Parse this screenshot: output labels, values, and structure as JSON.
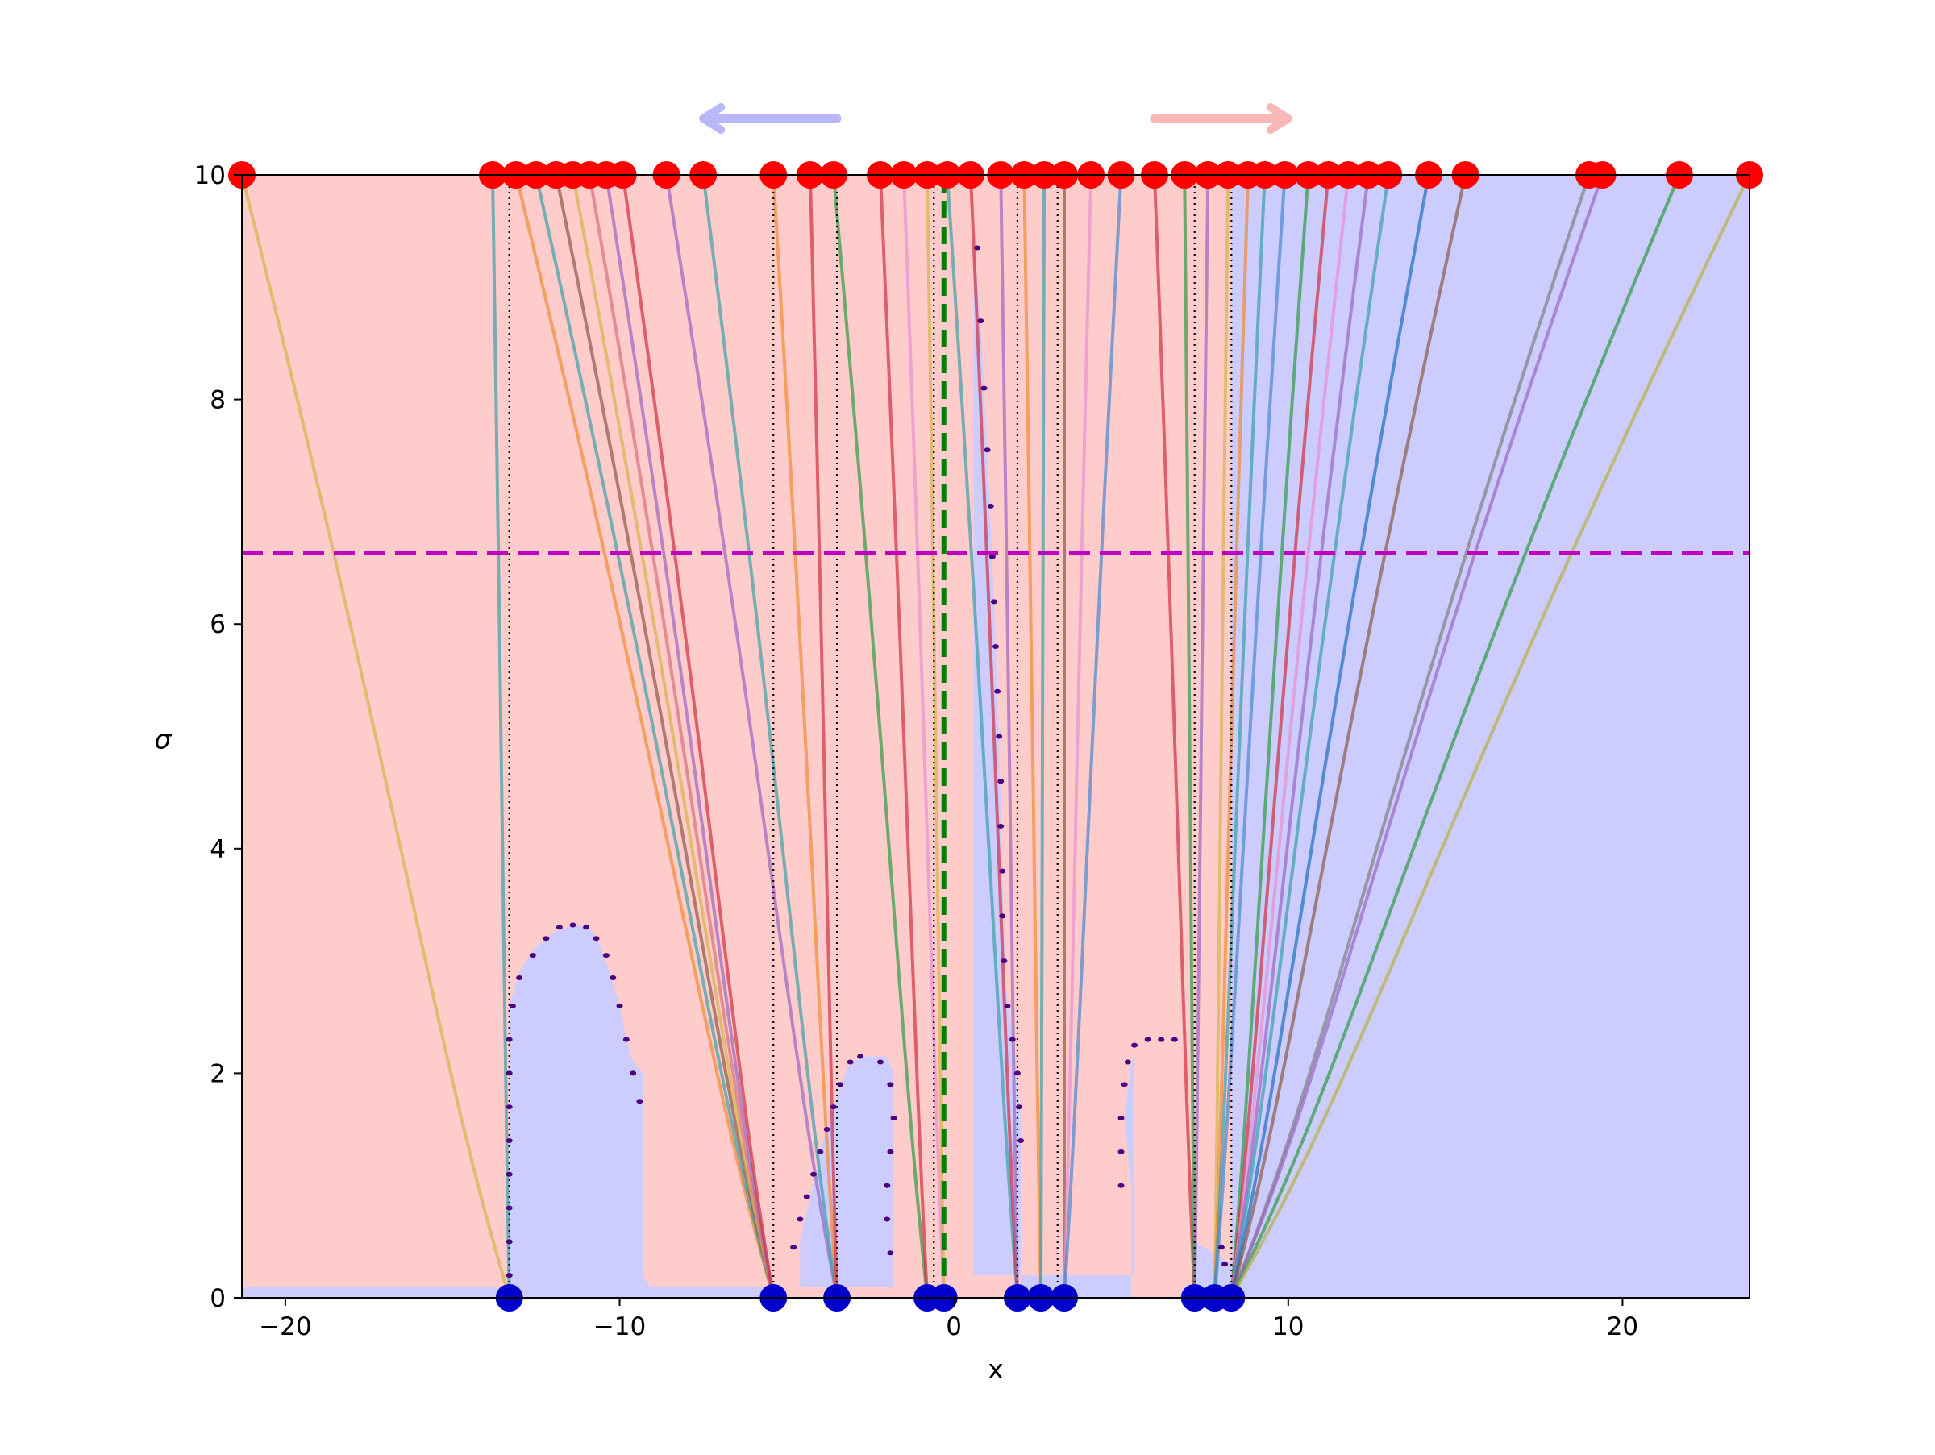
{
  "chart_data": {
    "type": "line",
    "title": "",
    "xlabel": "x",
    "ylabel": "σ",
    "xlim": [
      -21.3,
      23.8
    ],
    "ylim": [
      0,
      10
    ],
    "xticks": [
      -20,
      -10,
      0,
      10,
      20
    ],
    "xtick_labels": [
      "−20",
      "−10",
      "0",
      "10",
      "20"
    ],
    "yticks": [
      0,
      2,
      4,
      6,
      8,
      10
    ],
    "ytick_labels": [
      "0",
      "2",
      "4",
      "6",
      "8",
      "10"
    ],
    "grid": false,
    "legend": "none",
    "colors": {
      "red_region": "#ffcccc",
      "blue_region": "#ccccff",
      "top_markers": "#ff0000",
      "bottom_markers": "#0000cc",
      "horizontal_dashed": "#c000c0",
      "vertical_dashed": "#008000",
      "boundary_dots": "#4b0082",
      "dotted_lines": "#000000",
      "arrow_left": "#b8b8f8",
      "arrow_right": "#f8b8b8"
    },
    "horizontal_dashed_y": 6.63,
    "vertical_dashed_x": -0.3,
    "dotted_vertical_x": [
      -13.3,
      -5.4,
      -3.5,
      -0.6,
      1.9,
      3.1,
      7.2,
      8.3
    ],
    "arrows": [
      {
        "name": "arrow-left",
        "direction": "left",
        "x_from": -3.5,
        "x_to": -7.5
      },
      {
        "name": "arrow-right",
        "direction": "right",
        "x_from": 6.0,
        "x_to": 10.0
      }
    ],
    "bottom_points_x": [
      -13.3,
      -5.4,
      -3.5,
      -0.8,
      -0.3,
      1.9,
      2.6,
      3.3,
      7.2,
      7.8,
      8.3
    ],
    "top_points_x": [
      -21.3,
      -13.8,
      -13.1,
      -12.5,
      -11.9,
      -11.4,
      -10.9,
      -10.4,
      -9.9,
      -8.6,
      -7.5,
      -5.4,
      -4.3,
      -3.6,
      -2.2,
      -1.5,
      -0.8,
      -0.2,
      0.5,
      1.4,
      2.1,
      2.7,
      3.3,
      4.1,
      5.0,
      6.0,
      6.9,
      7.6,
      8.2,
      8.8,
      9.3,
      9.9,
      10.6,
      11.2,
      11.8,
      12.4,
      13.0,
      14.2,
      15.3,
      19.0,
      19.4,
      21.7,
      23.8
    ],
    "series": [
      {
        "x0": -13.3,
        "x1": -21.3,
        "color": "#d4b44a"
      },
      {
        "x0": -13.3,
        "x1": -13.8,
        "color": "#3aa0a8"
      },
      {
        "x0": -5.4,
        "x1": -13.1,
        "color": "#f08a30"
      },
      {
        "x0": -5.4,
        "x1": -12.5,
        "color": "#3aa0a8"
      },
      {
        "x0": -5.4,
        "x1": -11.9,
        "color": "#8c5a46"
      },
      {
        "x0": -5.4,
        "x1": -11.4,
        "color": "#d4b44a"
      },
      {
        "x0": -5.4,
        "x1": -10.9,
        "color": "#d9707a"
      },
      {
        "x0": -5.4,
        "x1": -10.4,
        "color": "#9a66c0"
      },
      {
        "x0": -5.4,
        "x1": -9.9,
        "color": "#d03040"
      },
      {
        "x0": -3.5,
        "x1": -8.6,
        "color": "#9a66c0"
      },
      {
        "x0": -3.5,
        "x1": -7.5,
        "color": "#3aa0a8"
      },
      {
        "x0": -3.5,
        "x1": -5.4,
        "color": "#f08a30"
      },
      {
        "x0": -3.5,
        "x1": -4.3,
        "color": "#d03040"
      },
      {
        "x0": -0.8,
        "x1": -3.6,
        "color": "#2e9a40"
      },
      {
        "x0": -0.8,
        "x1": -2.2,
        "color": "#d03040"
      },
      {
        "x0": -0.3,
        "x1": -1.5,
        "color": "#e890d0"
      },
      {
        "x0": -0.3,
        "x1": -0.8,
        "color": "#d4b44a"
      },
      {
        "x0": 1.9,
        "x1": -0.2,
        "color": "#3aa0a8"
      },
      {
        "x0": 1.9,
        "x1": 0.5,
        "color": "#d03040"
      },
      {
        "x0": 1.9,
        "x1": 1.4,
        "color": "#9a66c0"
      },
      {
        "x0": 2.6,
        "x1": 2.1,
        "color": "#f08a30"
      },
      {
        "x0": 2.6,
        "x1": 2.7,
        "color": "#3aa0a8"
      },
      {
        "x0": 3.3,
        "x1": 3.3,
        "color": "#8c5a46"
      },
      {
        "x0": 3.3,
        "x1": 4.1,
        "color": "#e890d0"
      },
      {
        "x0": 3.3,
        "x1": 5.0,
        "color": "#4a88d0"
      },
      {
        "x0": 7.2,
        "x1": 6.0,
        "color": "#d03040"
      },
      {
        "x0": 7.2,
        "x1": 6.9,
        "color": "#2e9a40"
      },
      {
        "x0": 7.2,
        "x1": 7.6,
        "color": "#9a66c0"
      },
      {
        "x0": 7.8,
        "x1": 8.2,
        "color": "#d4b44a"
      },
      {
        "x0": 7.8,
        "x1": 8.8,
        "color": "#f08a30"
      },
      {
        "x0": 7.8,
        "x1": 9.3,
        "color": "#3aa0a8"
      },
      {
        "x0": 7.8,
        "x1": 9.9,
        "color": "#4a88d0"
      },
      {
        "x0": 8.3,
        "x1": 10.6,
        "color": "#2e9a40"
      },
      {
        "x0": 8.3,
        "x1": 11.2,
        "color": "#d03040"
      },
      {
        "x0": 8.3,
        "x1": 11.8,
        "color": "#e890d0"
      },
      {
        "x0": 8.3,
        "x1": 12.4,
        "color": "#9a66c0"
      },
      {
        "x0": 8.3,
        "x1": 13.0,
        "color": "#3aa0a8"
      },
      {
        "x0": 8.3,
        "x1": 14.2,
        "color": "#1f6fc0"
      },
      {
        "x0": 8.3,
        "x1": 15.3,
        "color": "#8c5a46"
      },
      {
        "x0": 8.3,
        "x1": 19.0,
        "color": "#7f7f7f"
      },
      {
        "x0": 8.3,
        "x1": 19.4,
        "color": "#9a66c0"
      },
      {
        "x0": 8.3,
        "x1": 21.7,
        "color": "#2e9a40"
      },
      {
        "x0": 8.3,
        "x1": 23.8,
        "color": "#b8b040"
      }
    ],
    "boundary_dots": [
      [
        -13.3,
        0.2
      ],
      [
        -13.3,
        0.5
      ],
      [
        -13.3,
        0.8
      ],
      [
        -13.3,
        1.1
      ],
      [
        -13.3,
        1.4
      ],
      [
        -13.3,
        1.7
      ],
      [
        -13.3,
        2.0
      ],
      [
        -13.3,
        2.3
      ],
      [
        -13.2,
        2.6
      ],
      [
        -13.0,
        2.85
      ],
      [
        -12.6,
        3.05
      ],
      [
        -12.2,
        3.2
      ],
      [
        -11.8,
        3.3
      ],
      [
        -11.4,
        3.32
      ],
      [
        -11.0,
        3.3
      ],
      [
        -10.7,
        3.2
      ],
      [
        -10.4,
        3.05
      ],
      [
        -10.2,
        2.85
      ],
      [
        -10.0,
        2.6
      ],
      [
        -9.8,
        2.3
      ],
      [
        -9.6,
        2.0
      ],
      [
        -9.4,
        1.75
      ],
      [
        -4.8,
        0.45
      ],
      [
        -4.6,
        0.7
      ],
      [
        -4.4,
        0.9
      ],
      [
        -4.2,
        1.1
      ],
      [
        -4.0,
        1.3
      ],
      [
        -3.8,
        1.5
      ],
      [
        -3.6,
        1.7
      ],
      [
        -3.4,
        1.9
      ],
      [
        -3.1,
        2.1
      ],
      [
        -2.8,
        2.15
      ],
      [
        -2.2,
        2.1
      ],
      [
        -1.9,
        1.9
      ],
      [
        -1.8,
        1.6
      ],
      [
        -1.9,
        1.3
      ],
      [
        -2.0,
        1.0
      ],
      [
        -2.0,
        0.7
      ],
      [
        -1.9,
        0.4
      ],
      [
        0.7,
        9.35
      ],
      [
        0.8,
        8.7
      ],
      [
        0.9,
        8.1
      ],
      [
        1.0,
        7.55
      ],
      [
        1.1,
        7.05
      ],
      [
        1.15,
        6.6
      ],
      [
        1.2,
        6.2
      ],
      [
        1.25,
        5.8
      ],
      [
        1.3,
        5.4
      ],
      [
        1.35,
        5.0
      ],
      [
        1.4,
        4.6
      ],
      [
        1.4,
        4.2
      ],
      [
        1.45,
        3.8
      ],
      [
        1.45,
        3.4
      ],
      [
        1.5,
        3.0
      ],
      [
        1.6,
        2.6
      ],
      [
        1.75,
        2.3
      ],
      [
        1.9,
        2.0
      ],
      [
        1.95,
        1.7
      ],
      [
        2.0,
        1.4
      ],
      [
        5.2,
        2.1
      ],
      [
        5.4,
        2.25
      ],
      [
        5.8,
        2.3
      ],
      [
        6.2,
        2.3
      ],
      [
        6.6,
        2.3
      ],
      [
        5.1,
        1.9
      ],
      [
        5.0,
        1.6
      ],
      [
        5.0,
        1.3
      ],
      [
        5.0,
        1.0
      ],
      [
        8.0,
        0.45
      ],
      [
        8.1,
        0.3
      ]
    ],
    "blue_regions": [
      {
        "x_from": -21.3,
        "x_to": -13.3,
        "y_to": 0.1
      },
      {
        "x_from": -13.3,
        "x_to": -9.3,
        "y_to": "bump"
      },
      {
        "x_from": -9.3,
        "x_to": -5.4,
        "y_to": 0.1
      },
      {
        "x_from": -4.6,
        "x_to": -1.8,
        "y_to": "bump2"
      },
      {
        "x_from": 0.6,
        "x_to": 5.3,
        "y_to": "left_of_curve"
      },
      {
        "x_from": 7.2,
        "x_to": 23.8,
        "y_to": 10
      }
    ]
  }
}
